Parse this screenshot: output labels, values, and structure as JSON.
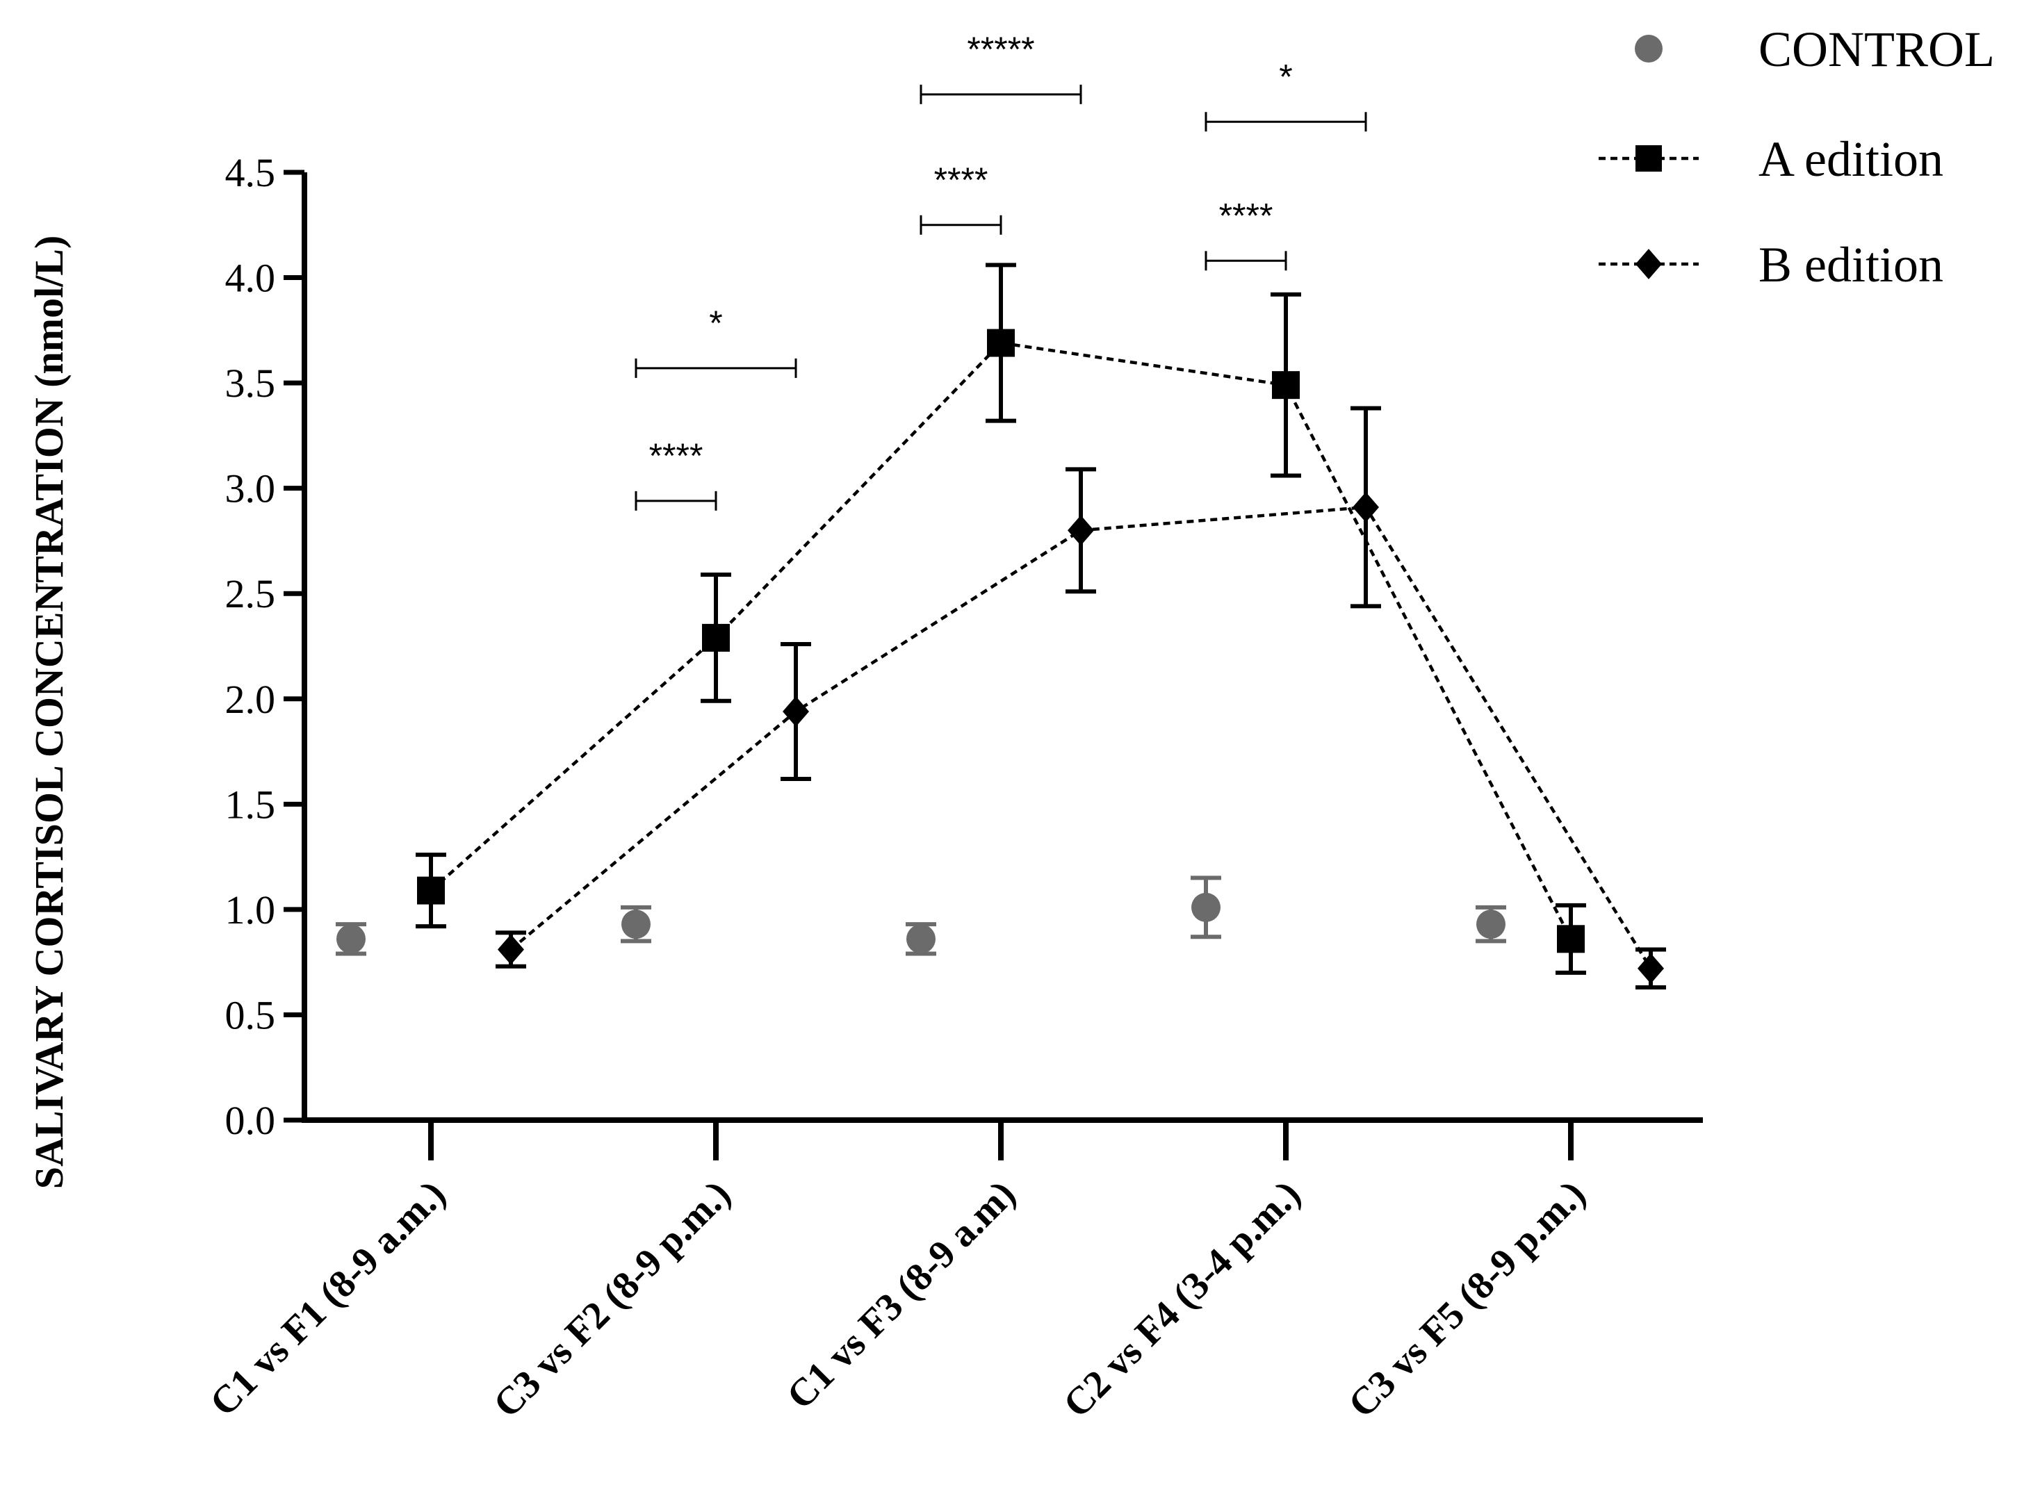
{
  "chart_data": {
    "type": "scatter",
    "title": "",
    "xlabel": "",
    "ylabel": "SALIVARY CORTISOL CONCENTRATION (nmol/L)",
    "ylim": [
      0,
      4.5
    ],
    "y_ticks": [
      "0.0",
      "0.5",
      "1.0",
      "1.5",
      "2.0",
      "2.5",
      "3.0",
      "3.5",
      "4.0",
      "4.5"
    ],
    "categories": [
      "C1 vs F1 (8-9 a.m.)",
      "C3 vs F2 (8-9 p.m.)",
      "C1 vs F3 (8-9 a.m)",
      "C2 vs F4 (3-4 p.m.)",
      "C3 vs F5 (8-9 p.m.)"
    ],
    "legend_position": "top-right",
    "series": [
      {
        "name": "CONTROL",
        "marker": "circle",
        "line": "none",
        "color": "#6b6b6b",
        "values": [
          0.86,
          0.93,
          0.86,
          1.01,
          0.93
        ],
        "errors": [
          0.07,
          0.08,
          0.07,
          0.14,
          0.08
        ]
      },
      {
        "name": "A edition",
        "marker": "square",
        "line": "dashed",
        "color": "#000000",
        "values": [
          1.09,
          2.29,
          3.69,
          3.49,
          0.86
        ],
        "errors": [
          0.17,
          0.3,
          0.37,
          0.43,
          0.16
        ]
      },
      {
        "name": "B edition",
        "marker": "diamond",
        "line": "dashed",
        "color": "#000000",
        "values": [
          0.81,
          1.94,
          2.8,
          2.91,
          0.72
        ],
        "errors": [
          0.08,
          0.32,
          0.29,
          0.47,
          0.09
        ]
      }
    ],
    "significance": [
      {
        "label": "****",
        "category": 1,
        "from_series": "CONTROL",
        "to_series": "A edition",
        "y": 2.94
      },
      {
        "label": "*",
        "category": 1,
        "from_series": "CONTROL",
        "to_series": "B edition",
        "y": 3.57
      },
      {
        "label": "****",
        "category": 2,
        "from_series": "CONTROL",
        "to_series": "A edition",
        "y": 4.25
      },
      {
        "label": "*****",
        "category": 2,
        "from_series": "CONTROL",
        "to_series": "B edition",
        "y": 4.87
      },
      {
        "label": "****",
        "category": 3,
        "from_series": "CONTROL",
        "to_series": "A edition",
        "y": 4.08
      },
      {
        "label": "*",
        "category": 3,
        "from_series": "CONTROL",
        "to_series": "B edition",
        "y": 4.74
      }
    ]
  }
}
